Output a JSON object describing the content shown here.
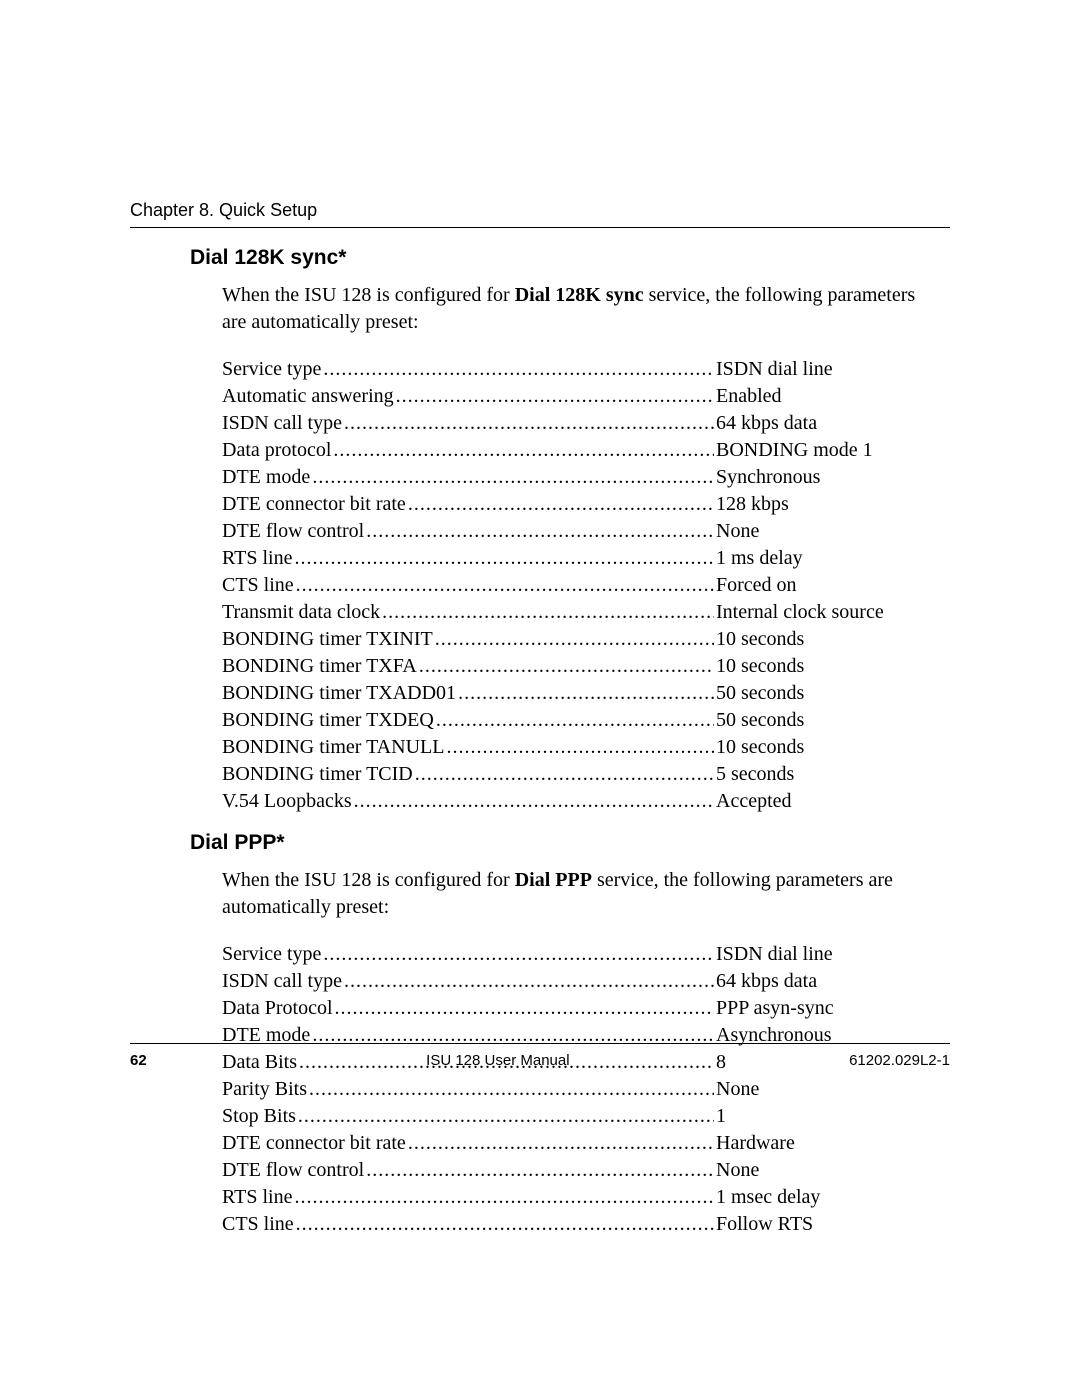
{
  "header": {
    "chapter": "Chapter 8. Quick Setup"
  },
  "sections": {
    "sync": {
      "title": "Dial 128K sync*",
      "intro_pre": "When the ISU 128 is configured for ",
      "intro_bold": "Dial 128K sync",
      "intro_post": " service, the following parameters are automatically preset:",
      "params": [
        {
          "label": "Service type",
          "value": "ISDN dial line"
        },
        {
          "label": "Automatic answering",
          "value": "Enabled"
        },
        {
          "label": "ISDN call type ",
          "value": "64 kbps data"
        },
        {
          "label": "Data protocol ",
          "value": "BONDING mode 1"
        },
        {
          "label": "DTE mode ",
          "value": "Synchronous"
        },
        {
          "label": "DTE connector bit rate ",
          "value": "128 kbps"
        },
        {
          "label": "DTE flow control",
          "value": " None"
        },
        {
          "label": "RTS line ",
          "value": "1 ms delay"
        },
        {
          "label": "CTS line ",
          "value": "Forced on"
        },
        {
          "label": "Transmit data clock ",
          "value": "Internal clock source"
        },
        {
          "label": "BONDING timer TXINIT ",
          "value": "10 seconds"
        },
        {
          "label": "BONDING timer TXFA",
          "value": "10 seconds"
        },
        {
          "label": "BONDING timer TXADD01",
          "value": "50 seconds"
        },
        {
          "label": "BONDING timer TXDEQ ",
          "value": "50 seconds"
        },
        {
          "label": "BONDING timer TANULL ",
          "value": "10 seconds"
        },
        {
          "label": "BONDING timer TCID ",
          "value": "5 seconds"
        },
        {
          "label": "V.54 Loopbacks ",
          "value": "Accepted"
        }
      ]
    },
    "ppp": {
      "title": "Dial PPP*",
      "intro_pre": "When the ISU 128 is configured for ",
      "intro_bold": "Dial PPP",
      "intro_post": " service, the following parameters are automatically preset:",
      "params": [
        {
          "label": "Service type",
          "value": "ISDN dial line"
        },
        {
          "label": "ISDN call type ",
          "value": "64 kbps data"
        },
        {
          "label": "Data Protocol",
          "value": "PPP asyn-sync"
        },
        {
          "label": "DTE mode ",
          "value": "Asynchronous"
        },
        {
          "label": "Data Bits ",
          "value": "8"
        },
        {
          "label": "Parity Bits ",
          "value": "None"
        },
        {
          "label": "Stop Bits",
          "value": "1"
        },
        {
          "label": "DTE connector bit rate ",
          "value": "Hardware"
        },
        {
          "label": "DTE flow control",
          "value": "None"
        },
        {
          "label": "RTS line ",
          "value": "1 msec delay"
        },
        {
          "label": "CTS line ",
          "value": "Follow RTS"
        }
      ]
    }
  },
  "footer": {
    "page": "62",
    "center": "ISU 128 User Manual",
    "right": "61202.029L2-1"
  }
}
